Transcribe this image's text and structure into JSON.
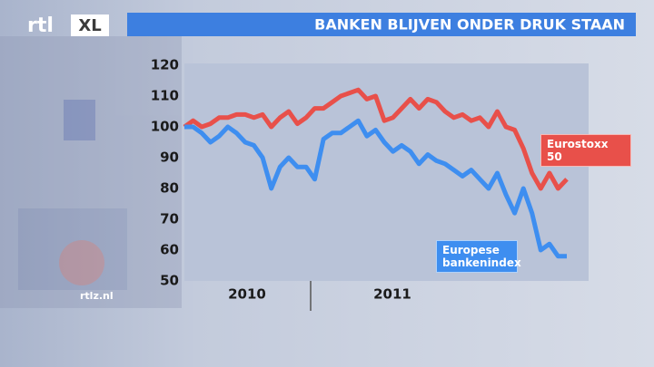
{
  "logo": [
    "rtl",
    "XL"
  ],
  "site": "rtlz.nl",
  "chart_data": {
    "type": "line",
    "title": "BANKEN BLIJVEN ONDER DRUK STAAN",
    "periods": [
      "2010",
      "2011"
    ],
    "ylim": [
      50,
      120
    ],
    "yticks": [
      50,
      60,
      70,
      80,
      90,
      100,
      110,
      120
    ],
    "series": [
      {
        "name": "Eurostoxx 50",
        "color": "#e8504a",
        "values": [
          100,
          102,
          100,
          101,
          103,
          103,
          104,
          104,
          103,
          104,
          100,
          103,
          105,
          101,
          103,
          106,
          106,
          108,
          110,
          111,
          112,
          109,
          110,
          102,
          103,
          106,
          109,
          106,
          109,
          108,
          105,
          103,
          104,
          102,
          103,
          100,
          105,
          100,
          99,
          93,
          85,
          80,
          85,
          80,
          83
        ]
      },
      {
        "name": "Europese bankenindex",
        "color": "#3e8ef0",
        "values": [
          100,
          100,
          98,
          95,
          97,
          100,
          98,
          95,
          94,
          90,
          80,
          87,
          90,
          87,
          87,
          83,
          96,
          98,
          98,
          100,
          102,
          97,
          99,
          95,
          92,
          94,
          92,
          88,
          91,
          89,
          88,
          86,
          84,
          86,
          83,
          80,
          85,
          78,
          72,
          80,
          72,
          60,
          62,
          58,
          58
        ]
      }
    ]
  }
}
